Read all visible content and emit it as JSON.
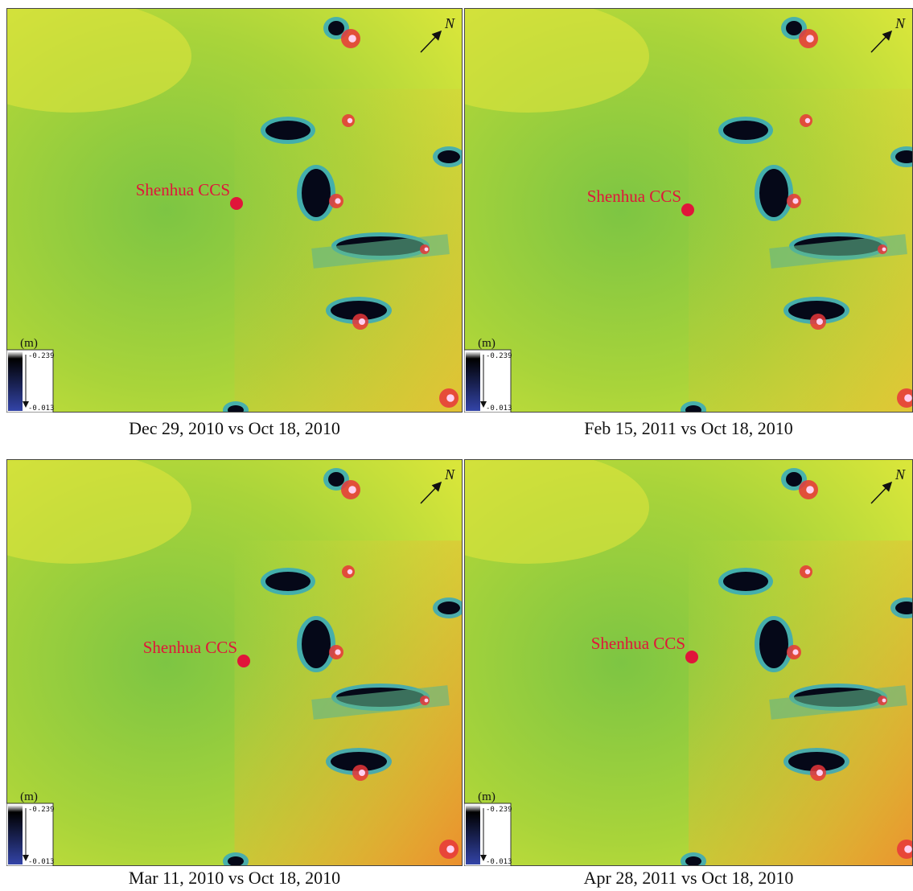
{
  "panels": [
    {
      "caption": "Dec 29, 2010 vs Oct 18, 2010",
      "site_label": "Shenhua CCS",
      "unit": "(m)",
      "colorbar_top": "-0.239",
      "colorbar_bottom": "-0.013",
      "north": "N"
    },
    {
      "caption": "Feb 15, 2011 vs Oct 18, 2010",
      "site_label": "Shenhua CCS",
      "unit": "(m)",
      "colorbar_top": "-0.239",
      "colorbar_bottom": "-0.013",
      "north": "N"
    },
    {
      "caption": "Mar 11, 2010 vs Oct 18, 2010",
      "site_label": "Shenhua CCS",
      "unit": "(m)",
      "colorbar_top": "-0.239",
      "colorbar_bottom": "-0.013",
      "north": "N"
    },
    {
      "caption": "Apr 28, 2011 vs Oct 18, 2010",
      "site_label": "Shenhua CCS",
      "unit": "(m)",
      "colorbar_top": "-0.239",
      "colorbar_bottom": "-0.013",
      "north": "N"
    }
  ]
}
